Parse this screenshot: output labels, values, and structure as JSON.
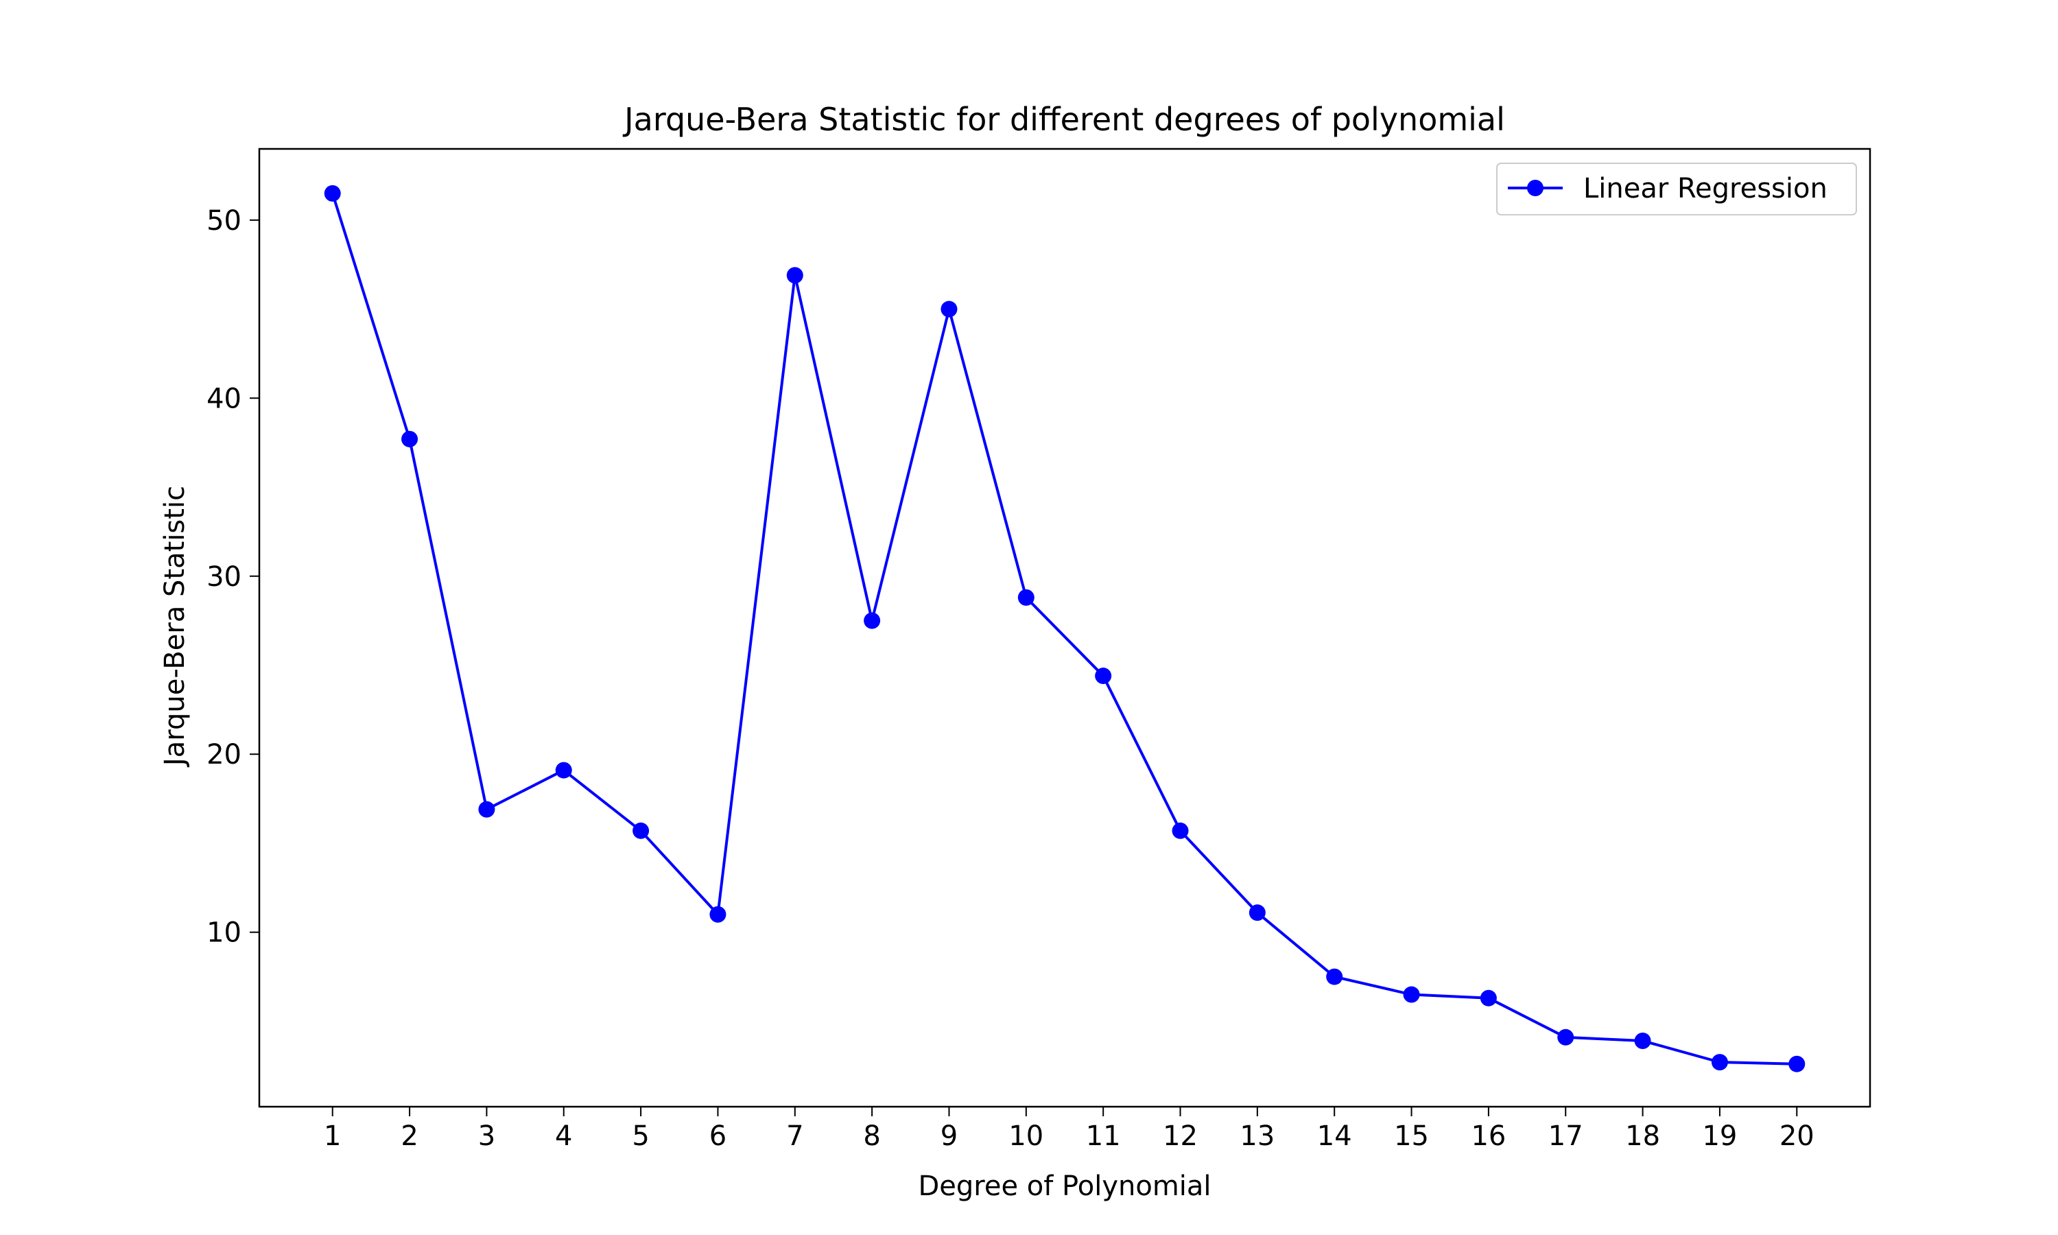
{
  "chart_data": {
    "type": "line",
    "title": "Jarque-Bera Statistic for different degrees of polynomial",
    "xlabel": "Degree of Polynomial",
    "ylabel": "Jarque-Bera Statistic",
    "x": [
      1,
      2,
      3,
      4,
      5,
      6,
      7,
      8,
      9,
      10,
      11,
      12,
      13,
      14,
      15,
      16,
      17,
      18,
      19,
      20
    ],
    "x_tick_labels": [
      "1",
      "2",
      "3",
      "4",
      "5",
      "6",
      "7",
      "8",
      "9",
      "10",
      "11",
      "12",
      "13",
      "14",
      "15",
      "16",
      "17",
      "18",
      "19",
      "20"
    ],
    "y_ticks": [
      10,
      20,
      30,
      40,
      50
    ],
    "y_tick_labels": [
      "10",
      "20",
      "30",
      "40",
      "50"
    ],
    "xlim": [
      0.05,
      20.95
    ],
    "ylim": [
      0.2,
      54.0
    ],
    "grid": false,
    "legend_position": "top-right",
    "series": [
      {
        "name": "Linear Regression",
        "color": "#0000ff",
        "marker": "circle",
        "values": [
          51.5,
          37.7,
          16.9,
          19.1,
          15.7,
          11.0,
          46.9,
          27.5,
          45.0,
          28.8,
          24.4,
          15.7,
          11.1,
          7.5,
          6.5,
          6.3,
          4.1,
          3.9,
          2.7,
          2.6
        ]
      }
    ]
  }
}
